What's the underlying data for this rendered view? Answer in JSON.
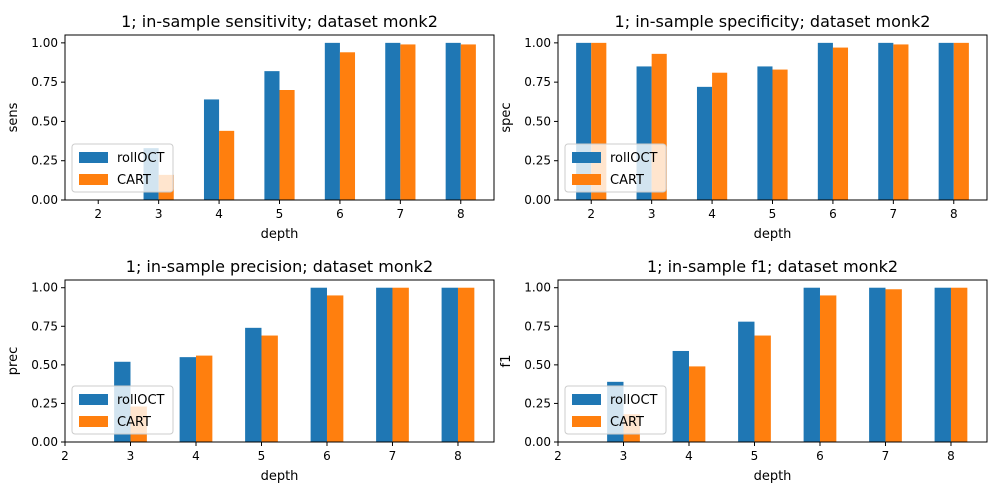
{
  "colors": {
    "rollOCT": "#1f77b4",
    "CART": "#ff7f0e",
    "axis": "#000000",
    "background": "#ffffff"
  },
  "legend_labels": [
    "rollOCT",
    "CART"
  ],
  "chart_data": [
    {
      "type": "bar",
      "title": "1; in-sample sensitivity; dataset monk2",
      "xlabel": "depth",
      "ylabel": "sens",
      "categories": [
        "2",
        "3",
        "4",
        "5",
        "6",
        "7",
        "8"
      ],
      "series": [
        {
          "name": "rollOCT",
          "values": [
            0.0,
            0.33,
            0.64,
            0.82,
            1.0,
            1.0,
            1.0
          ]
        },
        {
          "name": "CART",
          "values": [
            0.0,
            0.16,
            0.44,
            0.7,
            0.94,
            0.99,
            0.99
          ]
        }
      ],
      "ylim": [
        0,
        1.05
      ],
      "yticks": [
        "0.00",
        "0.25",
        "0.50",
        "0.75",
        "1.00"
      ],
      "legend": "lower-left"
    },
    {
      "type": "bar",
      "title": "1; in-sample specificity; dataset monk2",
      "xlabel": "depth",
      "ylabel": "spec",
      "categories": [
        "2",
        "3",
        "4",
        "5",
        "6",
        "7",
        "8"
      ],
      "series": [
        {
          "name": "rollOCT",
          "values": [
            1.0,
            0.85,
            0.72,
            0.85,
            1.0,
            1.0,
            1.0
          ]
        },
        {
          "name": "CART",
          "values": [
            1.0,
            0.93,
            0.81,
            0.83,
            0.97,
            0.99,
            1.0
          ]
        }
      ],
      "ylim": [
        0,
        1.05
      ],
      "yticks": [
        "0.00",
        "0.25",
        "0.50",
        "0.75",
        "1.00"
      ],
      "legend": "lower-left"
    },
    {
      "type": "bar",
      "title": "1; in-sample precision; dataset monk2",
      "xlabel": "depth",
      "ylabel": "prec",
      "categories": [
        "2",
        "3",
        "4",
        "5",
        "6",
        "7",
        "8"
      ],
      "series": [
        {
          "name": "rollOCT",
          "values": [
            null,
            0.52,
            0.55,
            0.74,
            1.0,
            1.0,
            1.0
          ]
        },
        {
          "name": "CART",
          "values": [
            null,
            0.23,
            0.56,
            0.69,
            0.95,
            1.0,
            1.0
          ]
        }
      ],
      "ylim": [
        0,
        1.05
      ],
      "yticks": [
        "0.00",
        "0.25",
        "0.50",
        "0.75",
        "1.00"
      ],
      "legend": "lower-left"
    },
    {
      "type": "bar",
      "title": "1; in-sample f1; dataset monk2",
      "xlabel": "depth",
      "ylabel": "f1",
      "categories": [
        "2",
        "3",
        "4",
        "5",
        "6",
        "7",
        "8"
      ],
      "series": [
        {
          "name": "rollOCT",
          "values": [
            null,
            0.39,
            0.59,
            0.78,
            1.0,
            1.0,
            1.0
          ]
        },
        {
          "name": "CART",
          "values": [
            null,
            0.18,
            0.49,
            0.69,
            0.95,
            0.99,
            1.0
          ]
        }
      ],
      "ylim": [
        0,
        1.05
      ],
      "yticks": [
        "0.00",
        "0.25",
        "0.50",
        "0.75",
        "1.00"
      ],
      "legend": "lower-left"
    }
  ]
}
